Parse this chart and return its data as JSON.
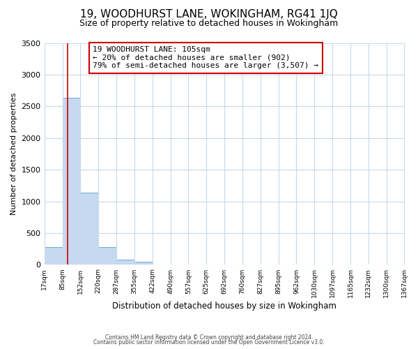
{
  "title": "19, WOODHURST LANE, WOKINGHAM, RG41 1JQ",
  "subtitle": "Size of property relative to detached houses in Wokingham",
  "xlabel": "Distribution of detached houses by size in Wokingham",
  "ylabel": "Number of detached properties",
  "bar_values": [
    275,
    2640,
    1140,
    280,
    85,
    45,
    0,
    0,
    0,
    0,
    0,
    0,
    0,
    0,
    0,
    0,
    0,
    0,
    0,
    0
  ],
  "bin_edges": [
    17,
    85,
    152,
    220,
    287,
    355,
    422,
    490,
    557,
    625,
    692,
    760,
    827,
    895,
    962,
    1030,
    1097,
    1165,
    1232,
    1300,
    1367
  ],
  "tick_labels": [
    "17sqm",
    "85sqm",
    "152sqm",
    "220sqm",
    "287sqm",
    "355sqm",
    "422sqm",
    "490sqm",
    "557sqm",
    "625sqm",
    "692sqm",
    "760sqm",
    "827sqm",
    "895sqm",
    "962sqm",
    "1030sqm",
    "1097sqm",
    "1165sqm",
    "1232sqm",
    "1300sqm",
    "1367sqm"
  ],
  "bar_color": "#c5d9f0",
  "bar_edge_color": "#6baed6",
  "grid_color": "#c8d8ea",
  "vline_x": 105,
  "vline_color": "#cc0000",
  "annotation_line1": "19 WOODHURST LANE: 105sqm",
  "annotation_line2": "← 20% of detached houses are smaller (902)",
  "annotation_line3": "79% of semi-detached houses are larger (3,507) →",
  "annotation_box_color": "#ffffff",
  "annotation_box_edge": "#cc0000",
  "ylim": [
    0,
    3500
  ],
  "yticks": [
    0,
    500,
    1000,
    1500,
    2000,
    2500,
    3000,
    3500
  ],
  "footer_line1": "Contains HM Land Registry data © Crown copyright and database right 2024.",
  "footer_line2": "Contains public sector information licensed under the Open Government Licence v3.0.",
  "bg_color": "#ffffff",
  "title_fontsize": 11,
  "subtitle_fontsize": 9,
  "annotation_fontsize": 8
}
